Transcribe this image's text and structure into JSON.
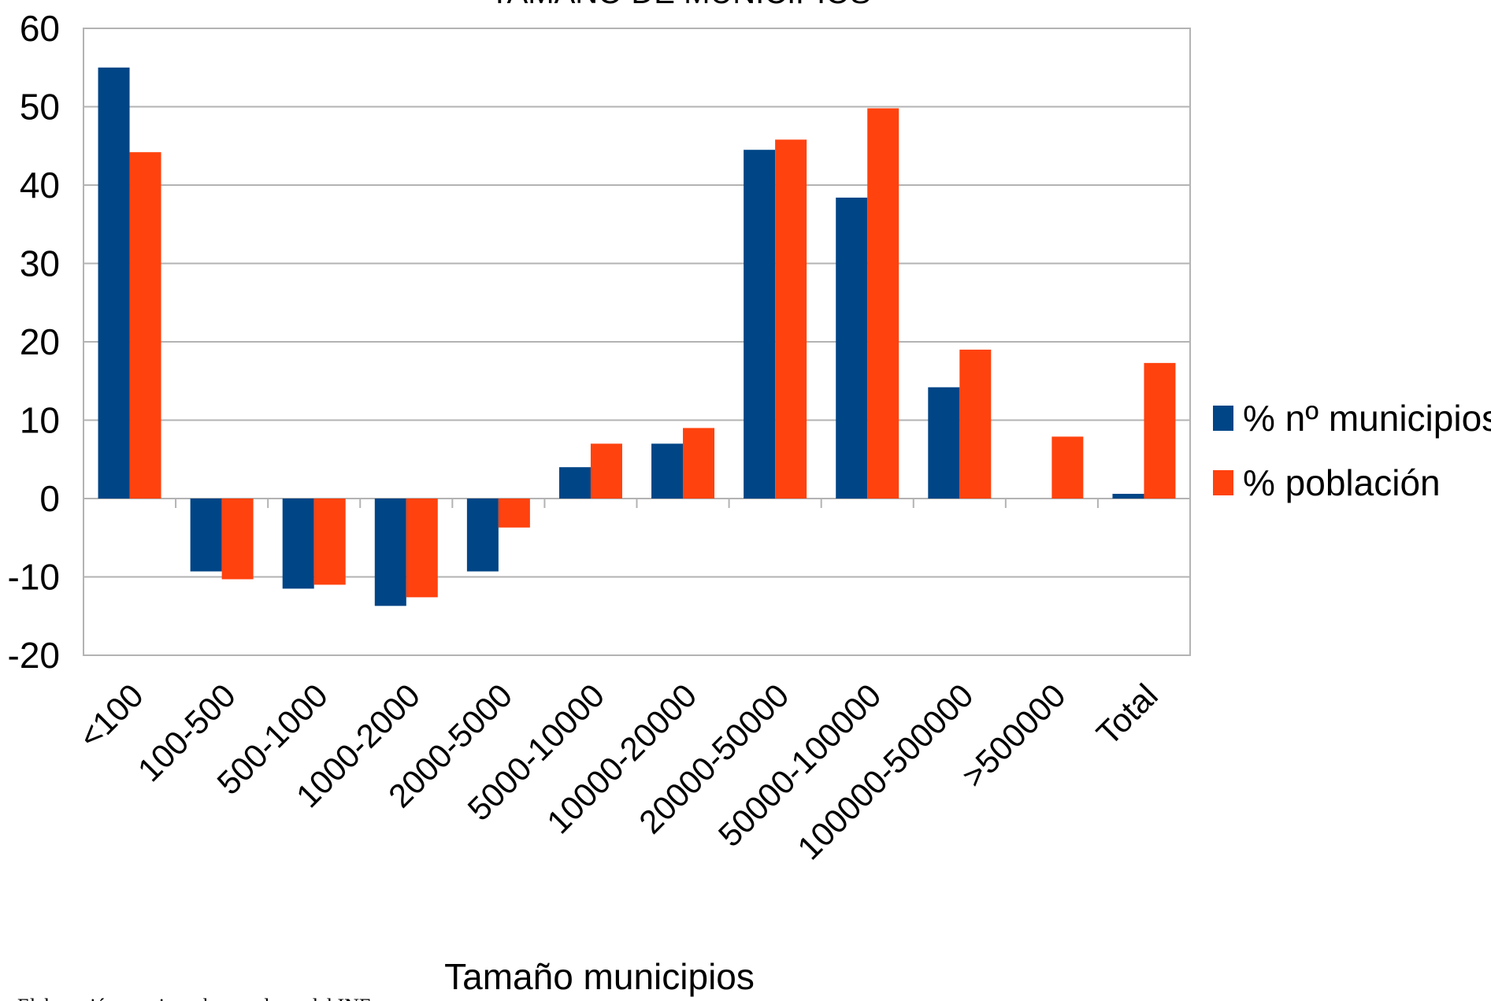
{
  "chart_data": {
    "type": "bar",
    "title": "TAMAÑO DE MUNICIPIOS",
    "x_label": "Tamaño municipios",
    "source": "Elaboración propia en base a datos del INE",
    "categories": [
      "<100",
      "100-500",
      "500-1000",
      "1000-2000",
      "2000-5000",
      "5000-10000",
      "10000-20000",
      "20000-50000",
      "50000-100000",
      "100000-500000",
      ">500000",
      "Total"
    ],
    "series": [
      {
        "name": "% nº municipios",
        "color": "#004586",
        "values": [
          55,
          -9.3,
          -11.5,
          -13.7,
          -9.3,
          4,
          7,
          44.5,
          38.4,
          14.2,
          0,
          0.6
        ]
      },
      {
        "name": "% población",
        "color": "#ff420e",
        "values": [
          44.2,
          -10.3,
          -11,
          -12.6,
          -3.7,
          7,
          9,
          45.8,
          49.8,
          19,
          7.9,
          17.3
        ]
      }
    ],
    "ylim": [
      -20,
      60
    ],
    "yticks": [
      -20,
      -10,
      0,
      10,
      20,
      30,
      40,
      50,
      60
    ],
    "grid": true,
    "legend": "right"
  }
}
